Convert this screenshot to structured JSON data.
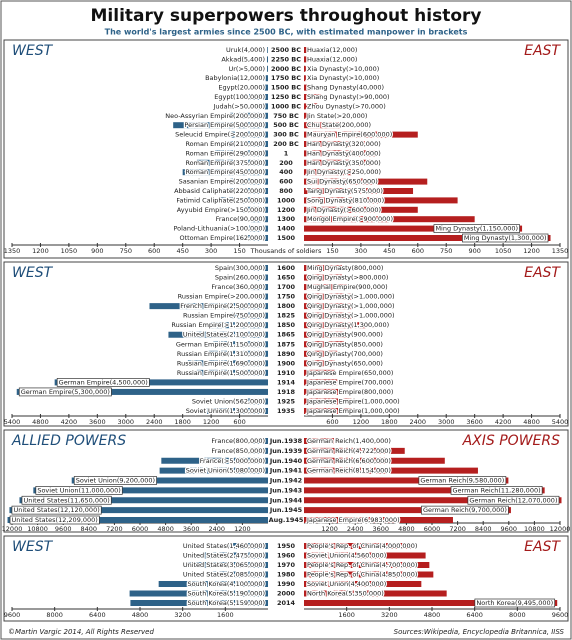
{
  "title": "Military superpowers throughout history",
  "subtitle": "The world's largest armies since 2500 BC, with estimated manpower in brackets",
  "footer_left": "©Martin Vargic 2014, All Rights Reserved",
  "footer_right": "Sources:Wikipedia, Encyclopedia Britannica, IISS",
  "chart_data": [
    {
      "type": "bar",
      "xlabel": "Thousands of soldiers",
      "xlim": [
        0,
        1350
      ],
      "xticks": [
        150,
        300,
        450,
        600,
        750,
        900,
        1050,
        1200,
        1350
      ],
      "categories": [
        "2500 BC",
        "2250 BC",
        "2000 BC",
        "1750 BC",
        "1500 BC",
        "1250 BC",
        "1000 BC",
        "750 BC",
        "500 BC",
        "300 BC",
        "200 BC",
        "1",
        "200",
        "400",
        "600",
        "800",
        "1000",
        "1200",
        "1300",
        "1400",
        "1500"
      ],
      "series": [
        {
          "name": "WEST",
          "color": "#2e6288",
          "labels": [
            "Uruk(4,000)",
            "Akkad(5,400)",
            "Ur(>5,000)",
            "Babylonia(12,000)",
            "Egypt(20,000)",
            "Egypt(100,000)",
            "Judah(>50,000)",
            "Neo-Assyrian Empire(200,000)",
            "Persian Empire(500,000)",
            "Seleucid Empire(>200,000)",
            "Roman Empire(210,000)",
            "Roman Empire(290,000)",
            "Roman Empire(375,000)",
            "Roman Empire(450,000)",
            "Sasanian Empire(200,000)",
            "Abbasid Caliphate(220,000)",
            "Fatimid Caliphate(250,000)",
            "Ayyubid Empire(>150,000)",
            "France(90,000)",
            "Poland-Lithuania(>100,000)",
            "Ottoman Empire(162,000)"
          ],
          "values": [
            4,
            5.4,
            5,
            12,
            20,
            100,
            50,
            200,
            500,
            200,
            210,
            290,
            375,
            450,
            200,
            220,
            250,
            150,
            90,
            100,
            162
          ]
        },
        {
          "name": "EAST",
          "color": "#b51f1f",
          "labels": [
            "Huaxia(12,000)",
            "Huaxia(12,000)",
            "Xia Dynasty(>10,000)",
            "Xia Dynasty(>10,000)",
            "Shang Dynasty(40,000)",
            "Shang Dynasty(>90,000)",
            "Zhou Dynasty(>70,000)",
            "Jin State(>20,000)",
            "Chu State(200,000)",
            "Mauryan Empire(600,000)",
            "Han Dynasty(320,000)",
            "Han Dynasty(400,000)",
            "Han Dynasty(350,000)",
            "Jin Dynasty(>250,000)",
            "Sui Dynasty(650,000)",
            "Tang Dynasty(575,000)",
            "Song Dynasty(810,000)",
            "Jin Dynasty(>600,000)",
            "Mongol Empire(>900,000)",
            "Ming Dynasty(1,150,000)",
            "Ming Dynasty(1,300,000)"
          ],
          "values": [
            12,
            12,
            10,
            10,
            40,
            90,
            70,
            20,
            200,
            600,
            320,
            400,
            350,
            250,
            650,
            575,
            810,
            600,
            900,
            1150,
            1300
          ]
        }
      ]
    },
    {
      "type": "bar",
      "xlim": [
        0,
        5400
      ],
      "xticks": [
        600,
        1200,
        1800,
        2400,
        3000,
        3600,
        4200,
        4800,
        5400
      ],
      "categories": [
        "1600",
        "1650",
        "1700",
        "1750",
        "1800",
        "1825",
        "1850",
        "1865",
        "1875",
        "1890",
        "1900",
        "1910",
        "1914",
        "1918",
        "1925",
        "1935"
      ],
      "series": [
        {
          "name": "WEST",
          "color": "#2e6288",
          "labels": [
            "Spain(300,000)",
            "Spain(260,000)",
            "France(360,000)",
            "Russian Empire(>200,000)",
            "French Empire(2,500,000)",
            "Russian Empire(750,000)",
            "Russian Empire(>1,200,000)",
            "United States(2,100,000)",
            "German Empire(1,150,000)",
            "Russian Empire(1,310,000)",
            "Russian Empire(1,690,000)",
            "Russian Empire(1,500,000)",
            "German Empire(4,500,000)",
            "German Empire(5,300,000)",
            "Soviet Union(562,000)",
            "Soviet Union(1,300,000)"
          ],
          "values": [
            300,
            260,
            360,
            200,
            2500,
            750,
            1200,
            2100,
            1150,
            1310,
            1690,
            1500,
            4500,
            5300,
            562,
            1300
          ]
        },
        {
          "name": "EAST",
          "color": "#b51f1f",
          "labels": [
            "Ming Dynasty(800,000)",
            "Qing Dynasty(>800,000)",
            "Mughal Empire(900,000)",
            "Qing Dynasty(>1,000,000)",
            "Qing Dynasty(>1,000,000)",
            "Qing Dynasty(>1,000,000)",
            "Qing Dynasty(1,300,000)",
            "Qing Dynasty(900,000)",
            "Qing Dynasty(850,000)",
            "Qing Dynasty(700,000)",
            "Qing Dynasty(650,000)",
            "Japanese Empire(650,000)",
            "Japanese Empire(700,000)",
            "Japanese Empire(800,000)",
            "Japanese Empire(1,000,000)",
            "Japanese Empire(1,000,000)"
          ],
          "values": [
            800,
            800,
            900,
            1000,
            1000,
            1000,
            1300,
            900,
            850,
            700,
            650,
            650,
            700,
            800,
            1000,
            1000
          ]
        }
      ]
    },
    {
      "type": "bar",
      "xlim": [
        0,
        12000
      ],
      "xticks": [
        1200,
        2400,
        3600,
        4800,
        6000,
        7200,
        8400,
        9600,
        10800,
        12000
      ],
      "categories": [
        "Jun.1938",
        "Jun.1939",
        "Jun.1940",
        "Jun.1941",
        "Jun.1942",
        "Jun.1943",
        "Jun.1944",
        "Jun.1945",
        "Aug.1945"
      ],
      "series": [
        {
          "name": "ALLIED POWERS",
          "color": "#2e6288",
          "labels": [
            "France(800,000)",
            "France(850,000)",
            "France(>5,000,000)",
            "Soviet Union(5,080,000)",
            "Soviet Union(9,200,000)",
            "Soviet Union(11,000,000)",
            "United States(11,650,000)",
            "United States(12,120,000)",
            "United States(12,209,000)"
          ],
          "values": [
            800,
            850,
            5000,
            5080,
            9200,
            11000,
            11650,
            12120,
            12209
          ]
        },
        {
          "name": "AXIS POWERS",
          "color": "#b51f1f",
          "labels": [
            "German Reich(1,400,000)",
            "German Reich(4,722,000)",
            "German Reich(6,600,000)",
            "German Reich(8,154,000)",
            "German Reich(9,580,000)",
            "German Reich(11,280,000)",
            "German Reich(12,070,000)",
            "German Reich(9,700,000)",
            "Japanese Empire(6,983,000)"
          ],
          "values": [
            1400,
            4722,
            6600,
            8154,
            9580,
            11280,
            12070,
            9700,
            6983
          ]
        }
      ]
    },
    {
      "type": "bar",
      "xlim": [
        0,
        9600
      ],
      "xticks": [
        1600,
        3200,
        4800,
        6400,
        8000,
        9600
      ],
      "categories": [
        "1950",
        "1960",
        "1970",
        "1980",
        "1990",
        "2000",
        "2014"
      ],
      "series": [
        {
          "name": "WEST",
          "color": "#2e6288",
          "labels": [
            "United States(1,460,000)",
            "United States(2,475,000)",
            "United States(3,065,000)",
            "United States(2,085,000)",
            "South Korea(4,100,000)",
            "South Korea(5,190,000)",
            "South Korea(5,159,000)"
          ],
          "values": [
            1460,
            2475,
            3065,
            2085,
            4100,
            5190,
            5159
          ]
        },
        {
          "name": "EAST",
          "color": "#b51f1f",
          "labels": [
            "People's Rep. of China(4,000,000)",
            "Soviet Union(4,560,000)",
            "People's Rep. of China(4,700,000)",
            "People's Rep. of China(4,850,000)",
            "Soviet Union(4,400,000)",
            "North Korea(5,350,000)",
            "North Korea(9,495,000)"
          ],
          "values": [
            4000,
            4560,
            4700,
            4850,
            4400,
            5350,
            9495
          ]
        }
      ]
    }
  ]
}
